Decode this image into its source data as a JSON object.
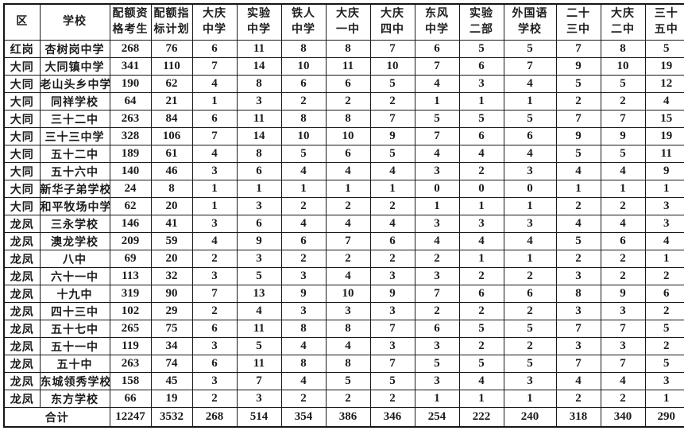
{
  "table": {
    "headers": [
      [
        "区"
      ],
      [
        "学校"
      ],
      [
        "配额资",
        "格考生"
      ],
      [
        "配额指",
        "标计划"
      ],
      [
        "大庆",
        "中学"
      ],
      [
        "实验",
        "中学"
      ],
      [
        "铁人",
        "中学"
      ],
      [
        "大庆",
        "一中"
      ],
      [
        "大庆",
        "四中"
      ],
      [
        "东风",
        "中学"
      ],
      [
        "实验",
        "二部"
      ],
      [
        "外国语",
        "学校"
      ],
      [
        "二十",
        "三中"
      ],
      [
        "大庆",
        "二中"
      ],
      [
        "三十",
        "五中"
      ]
    ],
    "rows": [
      [
        "红岗",
        "杏树岗中学",
        "268",
        "76",
        "6",
        "11",
        "8",
        "8",
        "7",
        "6",
        "5",
        "5",
        "7",
        "8",
        "5"
      ],
      [
        "大同",
        "大同镇中学",
        "341",
        "110",
        "7",
        "14",
        "10",
        "11",
        "10",
        "7",
        "6",
        "7",
        "9",
        "10",
        "19"
      ],
      [
        "大同",
        "老山头乡中学",
        "190",
        "62",
        "4",
        "8",
        "6",
        "6",
        "5",
        "4",
        "3",
        "4",
        "5",
        "5",
        "12"
      ],
      [
        "大同",
        "同祥学校",
        "64",
        "21",
        "1",
        "3",
        "2",
        "2",
        "2",
        "1",
        "1",
        "1",
        "2",
        "2",
        "4"
      ],
      [
        "大同",
        "三十二中",
        "263",
        "84",
        "6",
        "11",
        "8",
        "8",
        "7",
        "5",
        "5",
        "5",
        "7",
        "7",
        "15"
      ],
      [
        "大同",
        "三十三中学",
        "328",
        "106",
        "7",
        "14",
        "10",
        "10",
        "9",
        "7",
        "6",
        "6",
        "9",
        "9",
        "19"
      ],
      [
        "大同",
        "五十二中",
        "189",
        "61",
        "4",
        "8",
        "5",
        "6",
        "5",
        "4",
        "4",
        "4",
        "5",
        "5",
        "11"
      ],
      [
        "大同",
        "五十六中",
        "140",
        "46",
        "3",
        "6",
        "4",
        "4",
        "4",
        "3",
        "2",
        "3",
        "4",
        "4",
        "9"
      ],
      [
        "大同",
        "新华子弟学校",
        "24",
        "8",
        "1",
        "1",
        "1",
        "1",
        "1",
        "0",
        "0",
        "0",
        "1",
        "1",
        "1"
      ],
      [
        "大同",
        "和平牧场中学",
        "62",
        "20",
        "1",
        "3",
        "2",
        "2",
        "2",
        "1",
        "1",
        "1",
        "2",
        "2",
        "3"
      ],
      [
        "龙凤",
        "三永学校",
        "146",
        "41",
        "3",
        "6",
        "4",
        "4",
        "4",
        "3",
        "3",
        "3",
        "4",
        "4",
        "3"
      ],
      [
        "龙凤",
        "澳龙学校",
        "209",
        "59",
        "4",
        "9",
        "6",
        "7",
        "6",
        "4",
        "4",
        "4",
        "5",
        "6",
        "4"
      ],
      [
        "龙凤",
        "八中",
        "69",
        "20",
        "2",
        "3",
        "2",
        "2",
        "2",
        "2",
        "1",
        "1",
        "2",
        "2",
        "1"
      ],
      [
        "龙凤",
        "六十一中",
        "113",
        "32",
        "3",
        "5",
        "3",
        "4",
        "3",
        "3",
        "2",
        "2",
        "3",
        "2",
        "2"
      ],
      [
        "龙凤",
        "十九中",
        "319",
        "90",
        "7",
        "13",
        "9",
        "10",
        "9",
        "7",
        "6",
        "6",
        "8",
        "9",
        "6"
      ],
      [
        "龙凤",
        "四十三中",
        "102",
        "29",
        "2",
        "4",
        "3",
        "3",
        "3",
        "2",
        "2",
        "2",
        "3",
        "3",
        "2"
      ],
      [
        "龙凤",
        "五十七中",
        "265",
        "75",
        "6",
        "11",
        "8",
        "8",
        "7",
        "6",
        "5",
        "5",
        "7",
        "7",
        "5"
      ],
      [
        "龙凤",
        "五十一中",
        "119",
        "34",
        "3",
        "5",
        "4",
        "4",
        "3",
        "3",
        "2",
        "2",
        "3",
        "3",
        "2"
      ],
      [
        "龙凤",
        "五十中",
        "263",
        "74",
        "6",
        "11",
        "8",
        "8",
        "7",
        "5",
        "5",
        "5",
        "7",
        "7",
        "5"
      ],
      [
        "龙凤",
        "东城领秀学校",
        "158",
        "45",
        "3",
        "7",
        "4",
        "5",
        "5",
        "3",
        "4",
        "3",
        "4",
        "4",
        "3"
      ],
      [
        "龙凤",
        "东方学校",
        "66",
        "19",
        "2",
        "3",
        "2",
        "2",
        "2",
        "1",
        "1",
        "1",
        "2",
        "2",
        "1"
      ]
    ],
    "total": {
      "label": "合计",
      "values": [
        "12247",
        "3532",
        "268",
        "514",
        "354",
        "386",
        "346",
        "254",
        "222",
        "240",
        "318",
        "340",
        "290"
      ]
    },
    "colors": {
      "border": "#1a1a1a",
      "text": "#1c1c1c",
      "background": "#ffffff"
    }
  }
}
